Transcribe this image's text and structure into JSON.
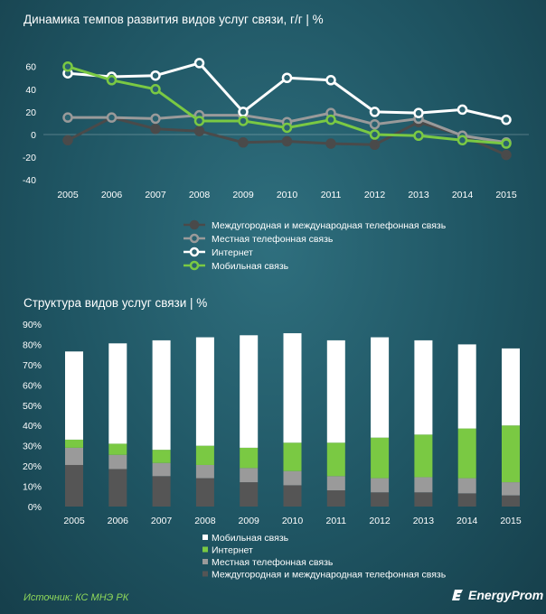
{
  "chart_data": [
    {
      "type": "line",
      "title": "Динамика темпов развития видов услуг связи, г/г  |  %",
      "x": [
        "2005",
        "2006",
        "2007",
        "2008",
        "2009",
        "2010",
        "2011",
        "2012",
        "2013",
        "2014",
        "2015"
      ],
      "y_ticks": [
        "60",
        "40",
        "20",
        "0",
        "-20",
        "-40"
      ],
      "ylim": [
        -40,
        70
      ],
      "grid": false,
      "legend_position": "bottom",
      "series": [
        {
          "name": "Междугородная и международная телефонная связь",
          "color": "#4a4a4a",
          "values": [
            -5,
            15,
            5,
            3,
            -7,
            -6,
            -8,
            -9,
            11,
            -1,
            -18
          ]
        },
        {
          "name": "Местная телефонная связь",
          "color": "#9a9a9a",
          "values": [
            15,
            15,
            14,
            17,
            17,
            11,
            19,
            9,
            14,
            -1,
            -7
          ]
        },
        {
          "name": "Интернет",
          "color": "#ffffff",
          "values": [
            54,
            51,
            52,
            63,
            20,
            50,
            48,
            20,
            19,
            22,
            13
          ]
        },
        {
          "name": "Мобильная связь",
          "color": "#7ac943",
          "values": [
            60,
            48,
            40,
            12,
            12,
            6,
            13,
            0,
            -1,
            -5,
            -8
          ]
        }
      ]
    },
    {
      "type": "bar",
      "stacked": true,
      "title": "Структура видов услуг связи | %",
      "categories": [
        "2005",
        "2006",
        "2007",
        "2008",
        "2009",
        "2010",
        "2011",
        "2012",
        "2013",
        "2014",
        "2015"
      ],
      "y_ticks": [
        "90%",
        "80%",
        "70%",
        "60%",
        "50%",
        "40%",
        "30%",
        "20%",
        "10%",
        "0%"
      ],
      "ylim": [
        0,
        90
      ],
      "legend_position": "bottom",
      "series": [
        {
          "name": "Междугородная и международная телефонная связь",
          "color": "#555555",
          "values": [
            20.5,
            18.5,
            15,
            14,
            12,
            10.5,
            8,
            7,
            7,
            6.5,
            5.5
          ]
        },
        {
          "name": "Местная телефонная связь",
          "color": "#9a9a9a",
          "values": [
            8.5,
            7,
            6.5,
            6.5,
            7,
            7,
            7,
            7,
            7.5,
            7.5,
            6.5
          ]
        },
        {
          "name": "Интернет",
          "color": "#7ac943",
          "values": [
            4,
            5.5,
            6.5,
            9.5,
            10,
            14,
            16.5,
            20,
            21,
            24.5,
            28
          ]
        },
        {
          "name": "Мобильная связь",
          "color": "#ffffff",
          "values": [
            43.5,
            49.5,
            54,
            53.5,
            55.5,
            54,
            50.5,
            49.5,
            46.5,
            41.5,
            38
          ]
        }
      ]
    }
  ],
  "footer": {
    "source": "Источник: КС МНЭ РК",
    "brand": "EnergyProm"
  }
}
